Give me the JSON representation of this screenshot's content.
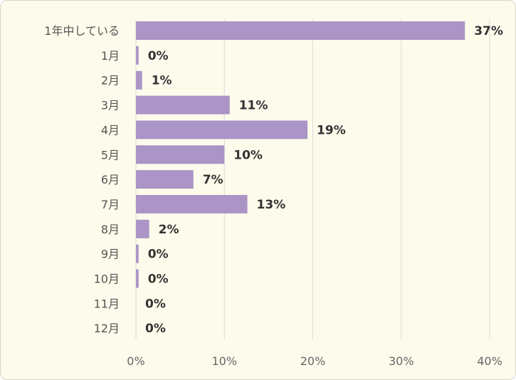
{
  "chart_data": {
    "type": "bar",
    "orientation": "horizontal",
    "categories": [
      "1年中している",
      "1月",
      "2月",
      "3月",
      "4月",
      "5月",
      "6月",
      "7月",
      "8月",
      "9月",
      "10月",
      "11月",
      "12月"
    ],
    "values": [
      37.2,
      0.3,
      0.7,
      10.6,
      19.4,
      10.0,
      6.5,
      12.6,
      1.5,
      0.3,
      0.3,
      0,
      0
    ],
    "value_labels": [
      "37%",
      "0%",
      "1%",
      "11%",
      "19%",
      "10%",
      "7%",
      "13%",
      "2%",
      "0%",
      "0%",
      "0%",
      "0%"
    ],
    "xlim": [
      0,
      40
    ],
    "x_ticks": [
      "0%",
      "10%",
      "20%",
      "30%",
      "40%"
    ],
    "grid": "vertical",
    "legend": "none",
    "colors": {
      "bar": "#ab94c6",
      "background": "#fdfbeb",
      "grid": "#d9d9d9"
    }
  }
}
